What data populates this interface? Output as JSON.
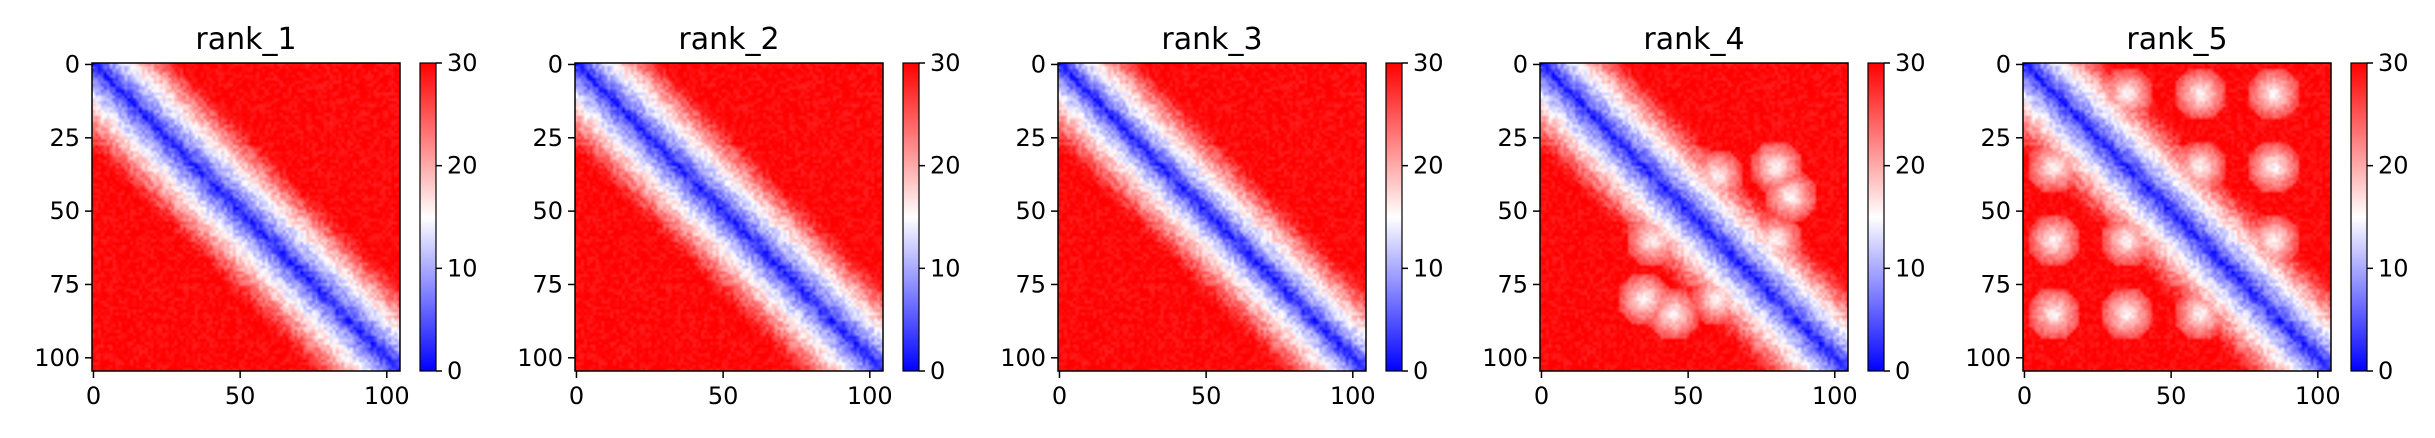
{
  "chart_data": {
    "type": "heatmap",
    "colormap": "bwr",
    "colormap_colors": [
      "#0000ff",
      "#ffffff",
      "#ff0000"
    ],
    "panels": [
      {
        "title": "rank_1",
        "size": 105,
        "vmin": 0,
        "vmax": 30,
        "diagonal_low_width": 5,
        "near_diag_white_band": 10,
        "contact_spots": [],
        "xticks": [
          0,
          50,
          100
        ],
        "yticks": [
          0,
          25,
          50,
          75,
          100
        ],
        "cbar_ticks": [
          0,
          10,
          20,
          30
        ]
      },
      {
        "title": "rank_2",
        "size": 105,
        "vmin": 0,
        "vmax": 30,
        "diagonal_low_width": 5,
        "near_diag_white_band": 8,
        "contact_spots": [],
        "xticks": [
          0,
          50,
          100
        ],
        "yticks": [
          0,
          25,
          50,
          75,
          100
        ],
        "cbar_ticks": [
          0,
          10,
          20,
          30
        ]
      },
      {
        "title": "rank_3",
        "size": 105,
        "vmin": 0,
        "vmax": 30,
        "diagonal_low_width": 4,
        "near_diag_white_band": 9,
        "contact_spots": [],
        "xticks": [
          0,
          50,
          100
        ],
        "yticks": [
          0,
          25,
          50,
          75,
          100
        ],
        "cbar_ticks": [
          0,
          10,
          20,
          30
        ]
      },
      {
        "title": "rank_4",
        "size": 105,
        "vmin": 0,
        "vmax": 30,
        "diagonal_low_width": 5,
        "near_diag_white_band": 9,
        "contact_spots": [
          [
            38,
            60
          ],
          [
            60,
            38
          ],
          [
            60,
            80
          ],
          [
            80,
            60
          ],
          [
            45,
            85
          ],
          [
            85,
            45
          ],
          [
            35,
            80
          ],
          [
            80,
            35
          ]
        ],
        "xticks": [
          0,
          50,
          100
        ],
        "yticks": [
          0,
          25,
          50,
          75,
          100
        ],
        "cbar_ticks": [
          0,
          10,
          20,
          30
        ]
      },
      {
        "title": "rank_5",
        "size": 105,
        "vmin": 0,
        "vmax": 30,
        "diagonal_low_width": 5,
        "near_diag_white_band": 9,
        "contact_spots": [
          [
            10,
            35
          ],
          [
            35,
            10
          ],
          [
            10,
            60
          ],
          [
            60,
            10
          ],
          [
            35,
            60
          ],
          [
            60,
            35
          ],
          [
            35,
            85
          ],
          [
            85,
            35
          ],
          [
            60,
            85
          ],
          [
            85,
            60
          ],
          [
            10,
            85
          ],
          [
            85,
            10
          ]
        ],
        "xticks": [
          0,
          50,
          100
        ],
        "yticks": [
          0,
          25,
          50,
          75,
          100
        ],
        "cbar_ticks": [
          0,
          10,
          20,
          30
        ]
      }
    ]
  }
}
